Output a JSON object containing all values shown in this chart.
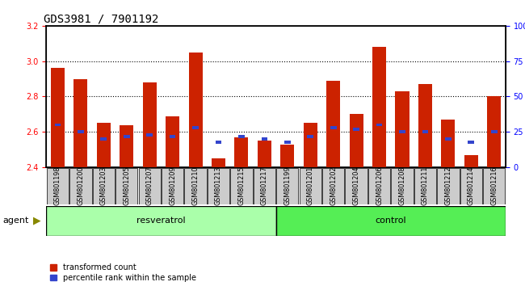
{
  "title": "GDS3981 / 7901192",
  "samples": [
    "GSM801198",
    "GSM801200",
    "GSM801203",
    "GSM801205",
    "GSM801207",
    "GSM801209",
    "GSM801210",
    "GSM801213",
    "GSM801215",
    "GSM801217",
    "GSM801199",
    "GSM801201",
    "GSM801202",
    "GSM801204",
    "GSM801206",
    "GSM801208",
    "GSM801211",
    "GSM801212",
    "GSM801214",
    "GSM801216"
  ],
  "red_values": [
    2.96,
    2.9,
    2.65,
    2.64,
    2.88,
    2.69,
    3.05,
    2.45,
    2.57,
    2.55,
    2.53,
    2.65,
    2.89,
    2.7,
    3.08,
    2.83,
    2.87,
    2.67,
    2.47,
    2.8
  ],
  "blue_pct": [
    30,
    25,
    20,
    22,
    23,
    22,
    28,
    18,
    22,
    20,
    18,
    22,
    28,
    27,
    30,
    25,
    25,
    20,
    18,
    25
  ],
  "ylim_left": [
    2.4,
    3.2
  ],
  "ylim_right": [
    0,
    100
  ],
  "yticks_left": [
    2.4,
    2.6,
    2.8,
    3.0,
    3.2
  ],
  "yticks_right": [
    0,
    25,
    50,
    75,
    100
  ],
  "resveratrol_count": 10,
  "control_count": 10,
  "bar_bottom": 2.4,
  "bar_color_red": "#cc2200",
  "bar_color_blue": "#3344cc",
  "bg_plot": "#ffffff",
  "bg_resveratrol": "#aaffaa",
  "bg_control": "#55ee55",
  "agent_label": "agent",
  "resveratrol_label": "resveratrol",
  "control_label": "control",
  "legend_red": "transformed count",
  "legend_blue": "percentile rank within the sample",
  "dotted_color": "#000000",
  "title_fontsize": 10,
  "tick_fontsize": 7,
  "label_fontsize": 8,
  "xlabel_bg": "#cccccc"
}
